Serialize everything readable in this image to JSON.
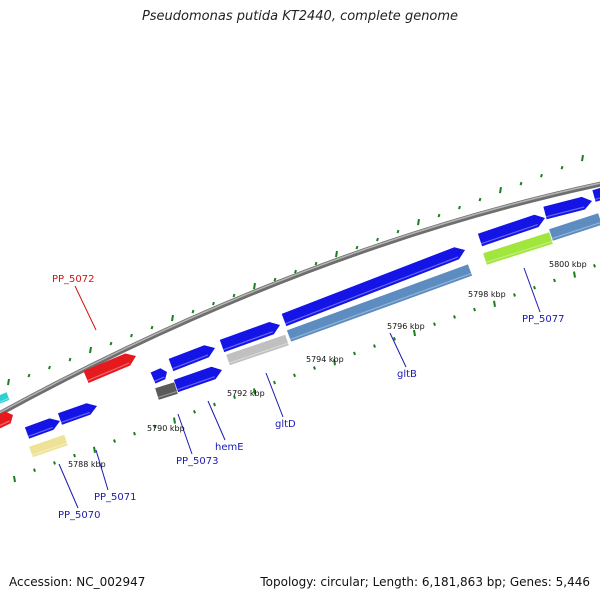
{
  "title": "Pseudomonas putida KT2440, complete genome",
  "footer": {
    "accession": "Accession: NC_002947",
    "summary": "Topology: circular; Length: 6,181,863 bp; Genes: 5,446"
  },
  "colors": {
    "backbone": "#8c8c8c",
    "tick": "#1e7d1e",
    "cds": "#1414e6",
    "cds_shadow": "#0a0a8c",
    "pseudo": "#e6191e",
    "label_blue": "#1a1ab4",
    "label_red": "#d21414",
    "steelblue": "#5c8cc0",
    "silver": "#c0c0c0",
    "darkgray": "#5a5a5a",
    "khaki": "#eee296",
    "lime": "#a0e63c",
    "cyan": "#2ad2d2"
  },
  "ruler": {
    "tick_labels": [
      "5788 kbp",
      "5790 kbp",
      "5792 kbp",
      "5794 kbp",
      "5796 kbp",
      "5798 kbp",
      "5800 kbp"
    ]
  },
  "gene_labels": [
    {
      "id": "PP_5072",
      "text": "PP_5072",
      "color": "red"
    },
    {
      "id": "PP_5070",
      "text": "PP_5070",
      "color": "blue"
    },
    {
      "id": "PP_5071",
      "text": "PP_5071",
      "color": "blue"
    },
    {
      "id": "PP_5073",
      "text": "PP_5073",
      "color": "blue"
    },
    {
      "id": "hemE",
      "text": "hemE",
      "color": "blue"
    },
    {
      "id": "gltD",
      "text": "gltD",
      "color": "blue"
    },
    {
      "id": "gltB",
      "text": "gltB",
      "color": "blue"
    },
    {
      "id": "PP_5077",
      "text": "PP_5077",
      "color": "blue"
    }
  ]
}
